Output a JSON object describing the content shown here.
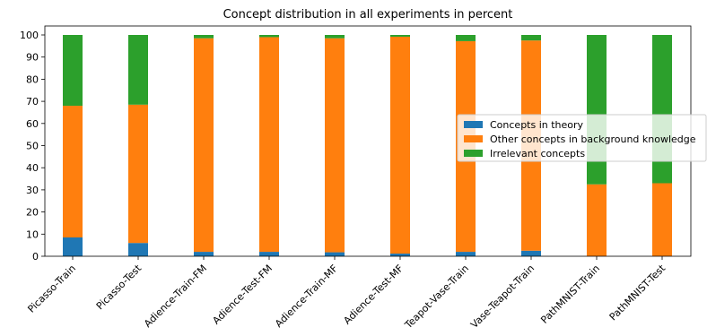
{
  "chart_data": {
    "type": "bar",
    "stacked": true,
    "title": "Concept distribution in all experiments in percent",
    "xlabel": "",
    "ylabel": "",
    "ylim": [
      0,
      100
    ],
    "yticks": [
      0,
      10,
      20,
      30,
      40,
      50,
      60,
      70,
      80,
      90,
      100
    ],
    "grid": false,
    "legend_position": "center-right",
    "categories": [
      "Picasso-Train",
      "Picasso-Test",
      "Adience-Train-FM",
      "Adience-Test-FM",
      "Adience-Train-MF",
      "Adience-Test-MF",
      "Teapot-Vase-Train",
      "Vase-Teapot-Train",
      "PathMNIST-Train",
      "PathMNIST-Test"
    ],
    "series": [
      {
        "name": "Concepts in theory",
        "color": "#1f77b4",
        "values": [
          8.5,
          6.0,
          2.0,
          2.0,
          1.8,
          1.2,
          2.0,
          2.5,
          0.0,
          0.0
        ]
      },
      {
        "name": "Other concepts in background knowledge",
        "color": "#ff7f0e",
        "values": [
          59.5,
          62.5,
          96.5,
          97.0,
          96.7,
          98.0,
          95.2,
          95.0,
          32.5,
          33.0
        ]
      },
      {
        "name": "Irrelevant concepts",
        "color": "#2ca02c",
        "values": [
          32.0,
          31.5,
          1.5,
          1.0,
          1.5,
          0.8,
          2.8,
          2.5,
          67.5,
          67.0
        ]
      }
    ]
  }
}
